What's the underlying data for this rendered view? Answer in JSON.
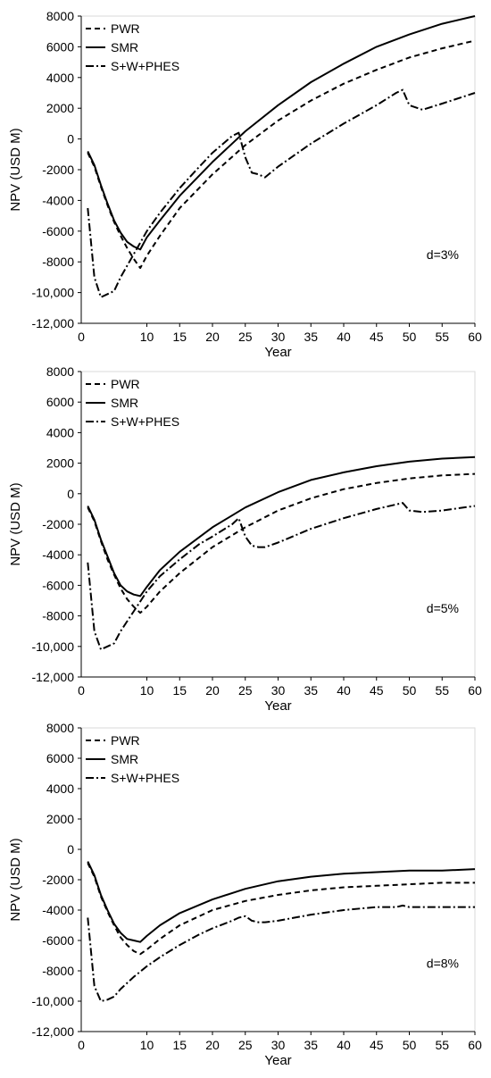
{
  "chart_data": [
    {
      "type": "line",
      "xlabel": "Year",
      "ylabel": "NPV (USD M)",
      "xlim": [
        0,
        60
      ],
      "ylim": [
        -12000,
        8000
      ],
      "xticks": [
        "10",
        "15",
        "20",
        "25",
        "30",
        "35",
        "40",
        "45",
        "50",
        "55",
        "60"
      ],
      "yticks": [
        "8000",
        "6000",
        "4000",
        "2000",
        "0",
        "-2000",
        "-4000",
        "-6000",
        "-8000",
        "-10,000",
        "-12,000"
      ],
      "x0_label": "0",
      "annotation": "d=3%",
      "legend_position": "top-left",
      "series": [
        {
          "name": "PWR",
          "style": "dashed",
          "x": [
            1,
            2,
            3,
            4,
            5,
            6,
            7,
            8,
            9,
            10,
            12,
            15,
            20,
            25,
            30,
            35,
            40,
            45,
            50,
            55,
            60
          ],
          "values": [
            -900,
            -1800,
            -3100,
            -4300,
            -5400,
            -6300,
            -7100,
            -7800,
            -8400,
            -7600,
            -6300,
            -4500,
            -2300,
            -400,
            1200,
            2500,
            3600,
            4500,
            5300,
            5900,
            6400
          ]
        },
        {
          "name": "SMR",
          "style": "solid",
          "x": [
            1,
            2,
            3,
            4,
            5,
            6,
            7,
            8,
            9,
            10,
            12,
            15,
            20,
            25,
            30,
            35,
            40,
            45,
            50,
            55,
            60
          ],
          "values": [
            -800,
            -1700,
            -3000,
            -4200,
            -5300,
            -6100,
            -6700,
            -7000,
            -7200,
            -6400,
            -5300,
            -3700,
            -1500,
            500,
            2200,
            3700,
            4900,
            6000,
            6800,
            7500,
            8000
          ]
        },
        {
          "name": "S+W+PHES",
          "style": "dashdot",
          "x": [
            1,
            2,
            3,
            4,
            5,
            6,
            8,
            10,
            12,
            15,
            18,
            20,
            23,
            24,
            25,
            26,
            27,
            28,
            30,
            35,
            40,
            45,
            48,
            49,
            50,
            52,
            55,
            60
          ],
          "values": [
            -4500,
            -9000,
            -10300,
            -10100,
            -9900,
            -9000,
            -7500,
            -6000,
            -4800,
            -3200,
            -1800,
            -900,
            200,
            400,
            -1200,
            -2200,
            -2300,
            -2500,
            -1800,
            -300,
            1000,
            2200,
            3000,
            3200,
            2200,
            1900,
            2300,
            3000
          ]
        }
      ]
    },
    {
      "type": "line",
      "xlabel": "Year",
      "ylabel": "NPV (USD M)",
      "xlim": [
        0,
        60
      ],
      "ylim": [
        -12000,
        8000
      ],
      "xticks": [
        "10",
        "15",
        "20",
        "25",
        "30",
        "35",
        "40",
        "45",
        "50",
        "55",
        "60"
      ],
      "yticks": [
        "8000",
        "6000",
        "4000",
        "2000",
        "0",
        "-2000",
        "-4000",
        "-6000",
        "-8000",
        "-10,000",
        "-12,000"
      ],
      "x0_label": "0",
      "annotation": "d=5%",
      "legend_position": "top-left",
      "series": [
        {
          "name": "PWR",
          "style": "dashed",
          "x": [
            1,
            2,
            3,
            4,
            5,
            6,
            7,
            8,
            9,
            10,
            12,
            15,
            20,
            25,
            30,
            35,
            40,
            45,
            50,
            55,
            60
          ],
          "values": [
            -900,
            -1800,
            -3100,
            -4300,
            -5300,
            -6200,
            -6900,
            -7400,
            -7800,
            -7400,
            -6400,
            -5200,
            -3500,
            -2200,
            -1100,
            -300,
            300,
            700,
            1000,
            1200,
            1300
          ]
        },
        {
          "name": "SMR",
          "style": "solid",
          "x": [
            1,
            2,
            3,
            4,
            5,
            6,
            7,
            8,
            9,
            10,
            12,
            15,
            20,
            25,
            30,
            35,
            40,
            45,
            50,
            55,
            60
          ],
          "values": [
            -800,
            -1700,
            -3000,
            -4100,
            -5200,
            -6000,
            -6400,
            -6600,
            -6700,
            -6100,
            -5000,
            -3800,
            -2200,
            -900,
            100,
            900,
            1400,
            1800,
            2100,
            2300,
            2400
          ]
        },
        {
          "name": "S+W+PHES",
          "style": "dashdot",
          "x": [
            1,
            2,
            3,
            4,
            5,
            6,
            8,
            10,
            12,
            15,
            18,
            20,
            23,
            24,
            25,
            26,
            27,
            28,
            30,
            35,
            40,
            45,
            48,
            49,
            50,
            52,
            55,
            60
          ],
          "values": [
            -4500,
            -9000,
            -10200,
            -10000,
            -9800,
            -9000,
            -7700,
            -6400,
            -5400,
            -4300,
            -3300,
            -2800,
            -2000,
            -1600,
            -2800,
            -3400,
            -3500,
            -3500,
            -3200,
            -2300,
            -1600,
            -1000,
            -700,
            -600,
            -1100,
            -1200,
            -1100,
            -800
          ]
        }
      ]
    },
    {
      "type": "line",
      "xlabel": "Year",
      "ylabel": "NPV (USD M)",
      "xlim": [
        0,
        60
      ],
      "ylim": [
        -12000,
        8000
      ],
      "xticks": [
        "10",
        "15",
        "20",
        "25",
        "30",
        "35",
        "40",
        "45",
        "50",
        "55",
        "60"
      ],
      "yticks": [
        "8000",
        "6000",
        "4000",
        "2000",
        "0",
        "-2000",
        "-4000",
        "-6000",
        "-8000",
        "-10,000",
        "-12,000"
      ],
      "x0_label": "0",
      "annotation": "d=8%",
      "legend_position": "top-left",
      "series": [
        {
          "name": "PWR",
          "style": "dashed",
          "x": [
            1,
            2,
            3,
            4,
            5,
            6,
            7,
            8,
            9,
            10,
            12,
            15,
            20,
            25,
            30,
            35,
            40,
            45,
            50,
            55,
            60
          ],
          "values": [
            -900,
            -1800,
            -3100,
            -4100,
            -5000,
            -5800,
            -6300,
            -6700,
            -6900,
            -6600,
            -5900,
            -5000,
            -4000,
            -3400,
            -3000,
            -2700,
            -2500,
            -2400,
            -2300,
            -2200,
            -2200
          ]
        },
        {
          "name": "SMR",
          "style": "solid",
          "x": [
            1,
            2,
            3,
            4,
            5,
            6,
            7,
            8,
            9,
            10,
            12,
            15,
            20,
            25,
            30,
            35,
            40,
            45,
            50,
            55,
            60
          ],
          "values": [
            -800,
            -1700,
            -3000,
            -4000,
            -4900,
            -5500,
            -5900,
            -6000,
            -6100,
            -5700,
            -5000,
            -4200,
            -3300,
            -2600,
            -2100,
            -1800,
            -1600,
            -1500,
            -1400,
            -1400,
            -1300
          ]
        },
        {
          "name": "S+W+PHES",
          "style": "dashdot",
          "x": [
            1,
            2,
            3,
            4,
            5,
            6,
            8,
            10,
            12,
            15,
            18,
            20,
            23,
            24,
            25,
            26,
            27,
            28,
            30,
            35,
            40,
            45,
            48,
            49,
            50,
            52,
            55,
            60
          ],
          "values": [
            -4500,
            -9000,
            -10000,
            -9900,
            -9700,
            -9200,
            -8400,
            -7700,
            -7100,
            -6300,
            -5600,
            -5200,
            -4700,
            -4500,
            -4400,
            -4700,
            -4800,
            -4800,
            -4700,
            -4300,
            -4000,
            -3800,
            -3800,
            -3700,
            -3800,
            -3800,
            -3800,
            -3800
          ]
        }
      ]
    }
  ]
}
